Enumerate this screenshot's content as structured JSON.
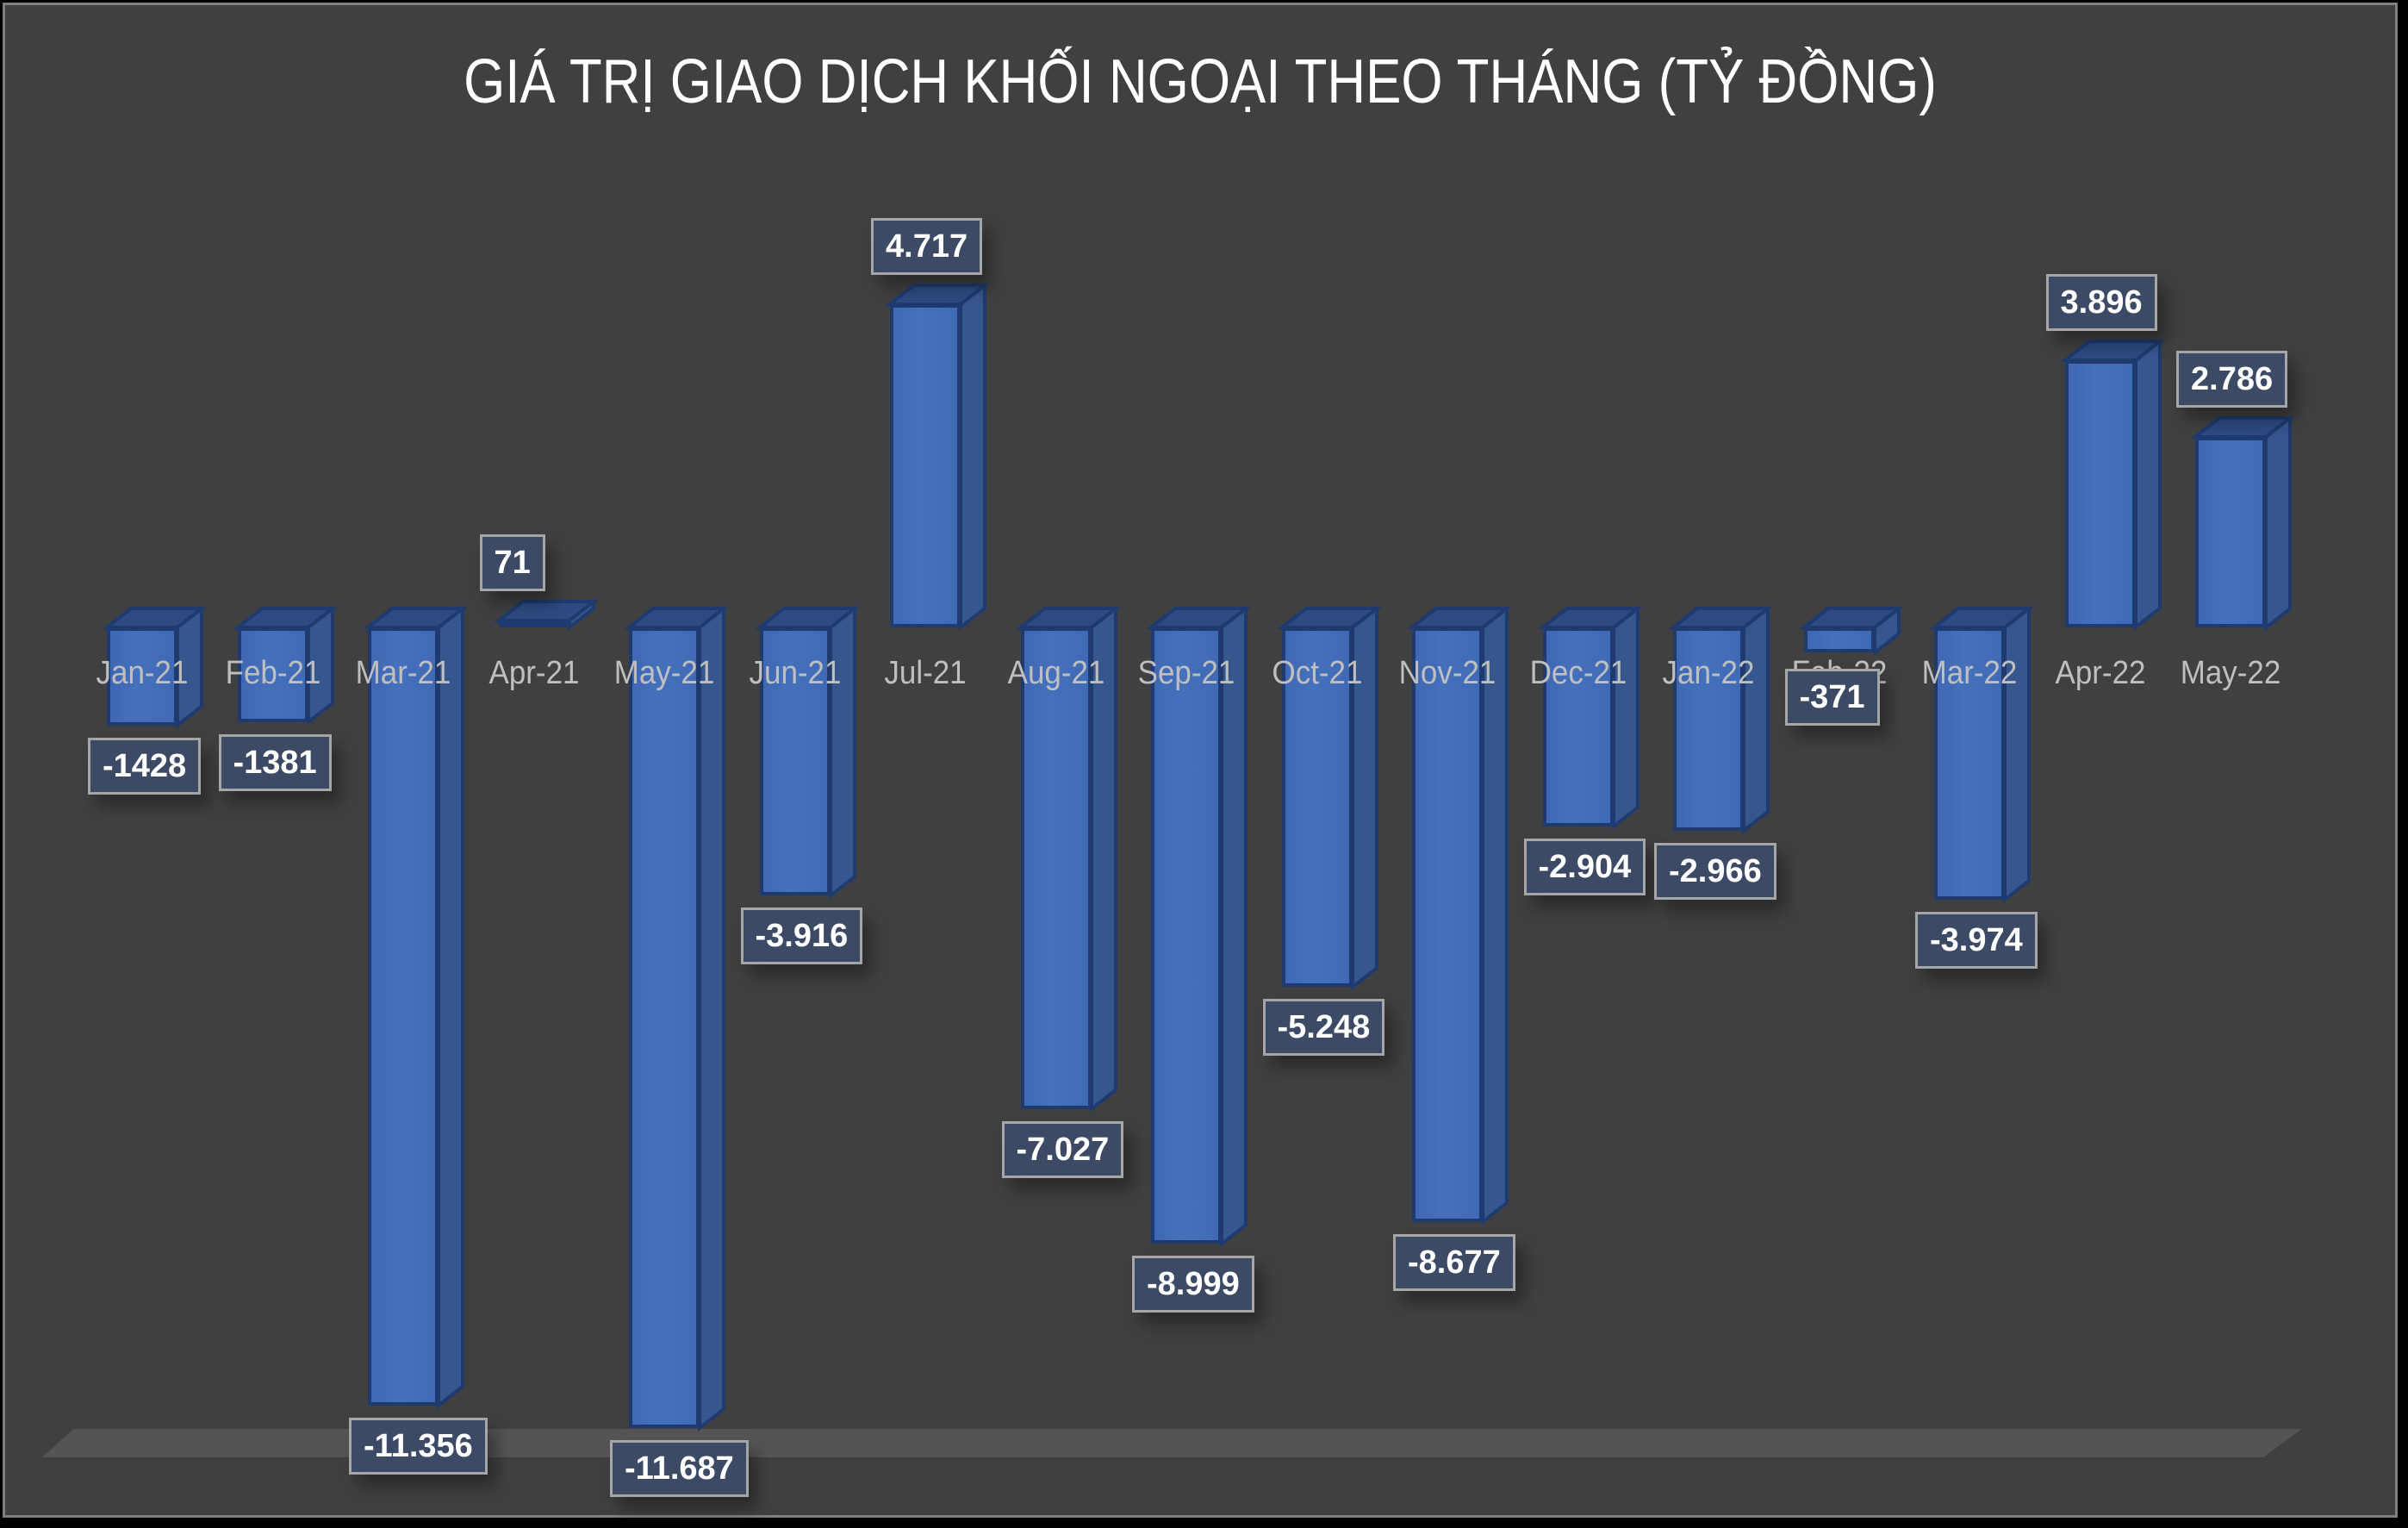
{
  "chart": {
    "title": "GIÁ TRỊ GIAO DỊCH KHỐI NGOẠI THEO THÁNG (TỶ ĐỒNG)"
  },
  "chart_data": {
    "type": "bar",
    "title": "GIÁ TRỊ GIAO DỊCH KHỐI NGOẠI THEO THÁNG (TỶ ĐỒNG)",
    "xlabel": "",
    "ylabel": "",
    "categories": [
      "Jan-21",
      "Feb-21",
      "Mar-21",
      "Apr-21",
      "May-21",
      "Jun-21",
      "Jul-21",
      "Aug-21",
      "Sep-21",
      "Oct-21",
      "Nov-21",
      "Dec-21",
      "Jan-22",
      "Feb-22",
      "Mar-22",
      "Apr-22",
      "May-22"
    ],
    "values": [
      -1428,
      -1381,
      -11356,
      71,
      -11687,
      -3916,
      4717,
      -7027,
      -8999,
      -5248,
      -8677,
      -2904,
      -2966,
      -371,
      -3974,
      3896,
      2786
    ],
    "data_labels": [
      "-1428",
      "-1381",
      "-11.356",
      "71",
      "-11.687",
      "-3.916",
      "4.717",
      "-7.027",
      "-8.999",
      "-5.248",
      "-8.677",
      "-2.904",
      "-2.966",
      "-371",
      "-3.974",
      "3.896",
      "2.786"
    ],
    "series": [
      {
        "name": "Giá trị giao dịch khối ngoại",
        "values": [
          -1428,
          -1381,
          -11356,
          71,
          -11687,
          -3916,
          4717,
          -7027,
          -8999,
          -5248,
          -8677,
          -2904,
          -2966,
          -371,
          -3974,
          3896,
          2786
        ]
      }
    ],
    "grid": false,
    "legend": "none",
    "style": "3d-column",
    "colors": {
      "bar": "#4472c4",
      "background": "#404040",
      "label_box": "#3d4a66",
      "label_border": "#a6a6a6",
      "axis_text": "#bfbfbf",
      "title": "#ffffff"
    }
  }
}
